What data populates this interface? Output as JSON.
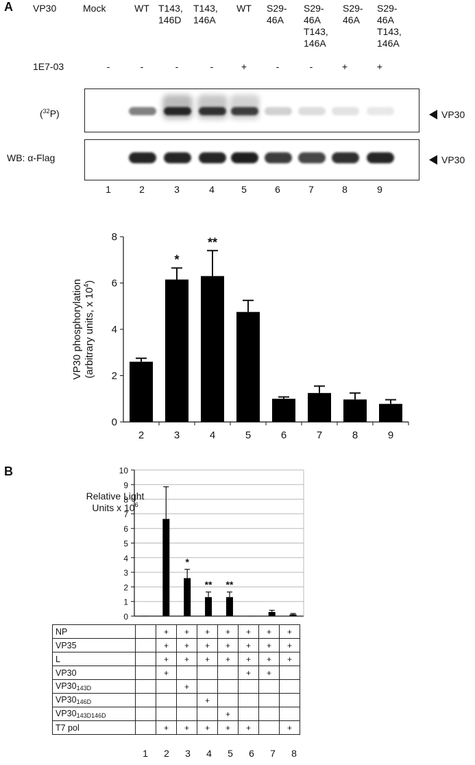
{
  "panel_a": {
    "label": "A",
    "row_label_vp30": "VP30",
    "lanes": [
      {
        "top": "Mock",
        "inhib": "-"
      },
      {
        "top": "WT",
        "inhib": "-"
      },
      {
        "top": "T143,\n146D",
        "inhib": "-"
      },
      {
        "top": "T143,\n146A",
        "inhib": "-"
      },
      {
        "top": "WT",
        "inhib": "+"
      },
      {
        "top": "S29-\n46A",
        "inhib": "-"
      },
      {
        "top": "S29-\n46A\nT143,\n146A",
        "inhib": "-"
      },
      {
        "top": "S29-\n46A",
        "inhib": "+"
      },
      {
        "top": "S29-\n46A\nT143,\n146A",
        "inhib": "+"
      }
    ],
    "row_label_inhibitor": "1E7-03",
    "blot1_label_pre": "(",
    "blot1_label_sup": "32",
    "blot1_label_post": "P)",
    "blot2_label": "WB: α-Flag",
    "blot1_intensity": [
      0,
      0.55,
      0.95,
      0.9,
      0.85,
      0.2,
      0.15,
      0.12,
      0.1
    ],
    "blot2_intensity": [
      0,
      0.95,
      0.95,
      0.95,
      0.98,
      0.85,
      0.8,
      0.9,
      0.95
    ],
    "arrow_label_1": "VP30",
    "arrow_label_2": "VP30",
    "lane_numbers": [
      "1",
      "2",
      "3",
      "4",
      "5",
      "6",
      "7",
      "8",
      "9"
    ]
  },
  "panel_b": {
    "label": "B",
    "row_labels": [
      "NP",
      "VP35",
      "L",
      "VP30",
      "VP30",
      "VP30",
      "VP30",
      "T7 pol"
    ],
    "row_subs": [
      "",
      "",
      "",
      "",
      "143D",
      "146D",
      "143D146D",
      ""
    ],
    "plus_symbol": "+",
    "matrix": [
      [
        0,
        1,
        1,
        1,
        1,
        1,
        1,
        1
      ],
      [
        0,
        1,
        1,
        1,
        1,
        1,
        1,
        1
      ],
      [
        0,
        1,
        1,
        1,
        1,
        1,
        1,
        1
      ],
      [
        0,
        1,
        0,
        0,
        0,
        1,
        1,
        0
      ],
      [
        0,
        0,
        1,
        0,
        0,
        0,
        0,
        0
      ],
      [
        0,
        0,
        0,
        1,
        0,
        0,
        0,
        0
      ],
      [
        0,
        0,
        0,
        0,
        1,
        0,
        0,
        0
      ],
      [
        0,
        1,
        1,
        1,
        1,
        1,
        0,
        1
      ]
    ],
    "lane_numbers": [
      "1",
      "2",
      "3",
      "4",
      "5",
      "6",
      "7",
      "8"
    ]
  },
  "chart_data": [
    {
      "type": "bar",
      "categories": [
        "2",
        "3",
        "4",
        "5",
        "6",
        "7",
        "8",
        "9"
      ],
      "values": [
        2.6,
        6.15,
        6.3,
        4.75,
        1.0,
        1.25,
        0.97,
        0.78
      ],
      "errors": [
        0.15,
        0.5,
        1.1,
        0.5,
        0.08,
        0.3,
        0.28,
        0.18
      ],
      "annotations": [
        "",
        "*",
        "**",
        "",
        "",
        "",
        "",
        ""
      ],
      "ylabel_line1": "VP30 phosphorylation",
      "ylabel_line2_pre": "(arbitrary units, x 10",
      "ylabel_line2_sup": "4",
      "ylabel_line2_post": ")",
      "ylim": [
        0,
        8
      ],
      "yticks": [
        "0",
        "2",
        "4",
        "6",
        "8"
      ],
      "grid": false,
      "bar_color": "#000000"
    },
    {
      "type": "bar",
      "categories": [
        "1",
        "2",
        "3",
        "4",
        "5",
        "6",
        "7",
        "8"
      ],
      "values": [
        0.02,
        6.65,
        2.6,
        1.3,
        1.3,
        0.02,
        0.28,
        0.12
      ],
      "errors": [
        0,
        2.2,
        0.6,
        0.35,
        0.35,
        0,
        0.12,
        0.06
      ],
      "annotations": [
        "",
        "",
        "*",
        "**",
        "**",
        "",
        "",
        ""
      ],
      "ylabel_line1": "Relative Light",
      "ylabel_line2_pre": "Units x 10",
      "ylabel_line2_sup": "6",
      "ylabel_line2_post": "",
      "ylim": [
        0,
        10
      ],
      "yticks": [
        "0",
        "1",
        "2",
        "3",
        "4",
        "5",
        "6",
        "7",
        "8",
        "9",
        "10"
      ],
      "grid": true,
      "bar_color": "#000000"
    }
  ]
}
